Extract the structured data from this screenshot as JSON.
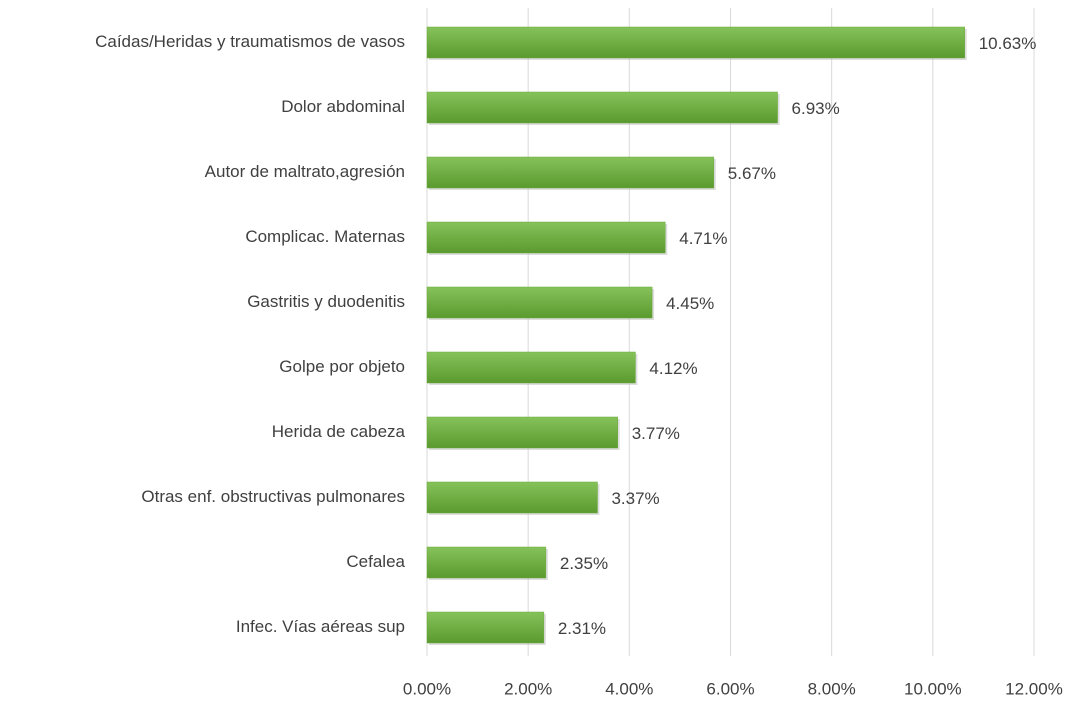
{
  "chart_data": {
    "type": "barh",
    "categories": [
      "Caídas/Heridas y traumatismos de vasos",
      "Dolor abdominal",
      "Autor de maltrato,agresión",
      "Complicac. Maternas",
      "Gastritis y duodenitis",
      "Golpe por objeto",
      "Herida de cabeza",
      "Otras enf. obstructivas pulmonares",
      "Cefalea",
      "Infec. Vías aéreas sup"
    ],
    "values": [
      10.63,
      6.93,
      5.67,
      4.71,
      4.45,
      4.12,
      3.77,
      3.37,
      2.35,
      2.31
    ],
    "value_labels": [
      "10.63%",
      "6.93%",
      "5.67%",
      "4.71%",
      "4.45%",
      "4.12%",
      "3.77%",
      "3.37%",
      "2.35%",
      "2.31%"
    ],
    "color": "#6aab3c",
    "xlim": [
      0,
      12
    ],
    "xticks": [
      {
        "value": 0,
        "label": "0.00%"
      },
      {
        "value": 2,
        "label": "2.00%"
      },
      {
        "value": 4,
        "label": "4.00%"
      },
      {
        "value": 6,
        "label": "6.00%"
      },
      {
        "value": 8,
        "label": "8.00%"
      },
      {
        "value": 10,
        "label": "10.00%"
      },
      {
        "value": 12,
        "label": "12.00%"
      }
    ],
    "grid": true
  }
}
